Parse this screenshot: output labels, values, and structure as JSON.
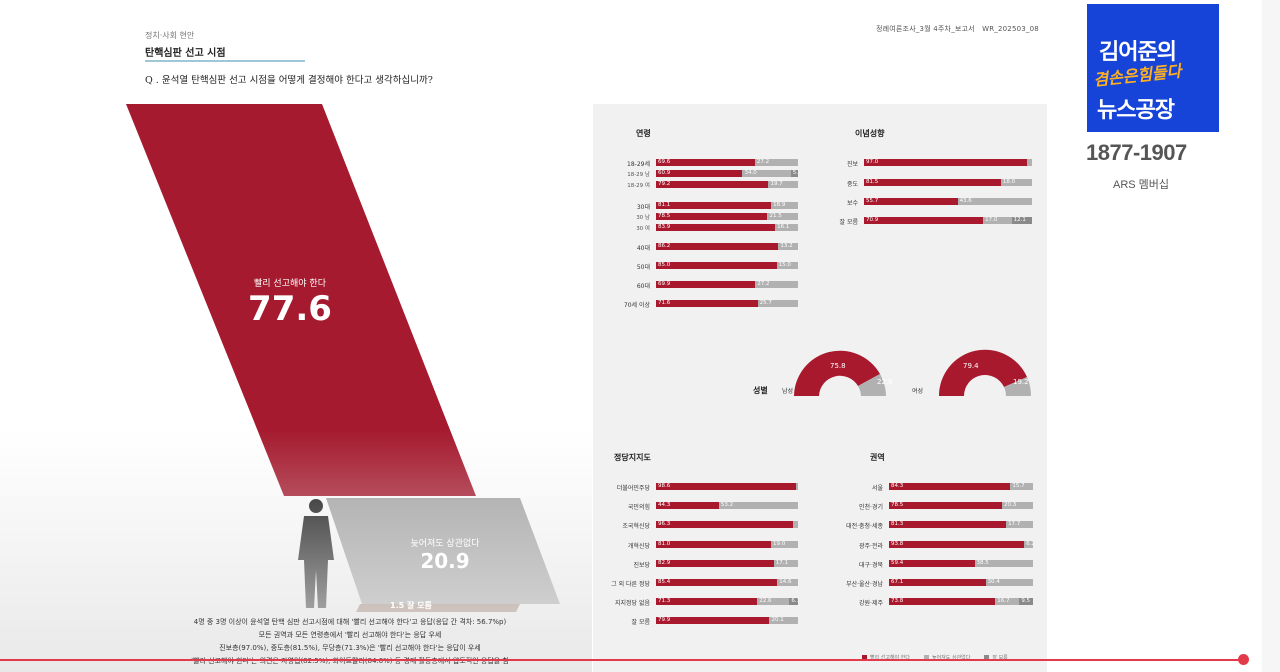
{
  "header": {
    "category": "정치·사회 현안",
    "title": "탄핵심판 선고 시점",
    "report_ref": "정례여론조사_3월 4주차_보고서",
    "report_code": "WR_202503_08",
    "question": "Q . 윤석열 탄핵심판 선고 시점을 어떻게 결정해야 한다고 생각하십니까?"
  },
  "overall": {
    "main_label": "빨리 선고해야 한다",
    "main_value": "77.6",
    "second_label": "늦어져도 상관없다",
    "second_value": "20.9",
    "third_label": "1.5 잘 모름"
  },
  "sections": {
    "age": "연령",
    "ideology": "이념성향",
    "gender": "성별",
    "party": "정당지지도",
    "region": "권역"
  },
  "colors": {
    "red": "#a8192e",
    "gray": "#b1b1b1",
    "dark": "#8a8a8a"
  },
  "age_rows": [
    {
      "label": "18-29세",
      "r": "69.6",
      "g": "27.2",
      "d": "",
      "small": false
    },
    {
      "label": "18-29 남",
      "r": "60.9",
      "g": "34.0",
      "d": "5.1",
      "small": true
    },
    {
      "label": "18-29 여",
      "r": "79.2",
      "g": "19.7",
      "d": "",
      "small": true
    },
    {
      "label": "30대",
      "r": "81.1",
      "g": "18.9",
      "d": "",
      "small": false
    },
    {
      "label": "30 남",
      "r": "78.5",
      "g": "21.5",
      "d": "",
      "small": true
    },
    {
      "label": "30 여",
      "r": "83.9",
      "g": "16.1",
      "d": "",
      "small": true
    },
    {
      "label": "40대",
      "r": "86.2",
      "g": "13.2",
      "d": "",
      "small": false
    },
    {
      "label": "50대",
      "r": "85.0",
      "g": "15.0",
      "d": "",
      "small": false
    },
    {
      "label": "60대",
      "r": "69.9",
      "g": "27.2",
      "d": "",
      "small": false
    },
    {
      "label": "70세 이상",
      "r": "71.6",
      "g": "25.7",
      "d": "",
      "small": false
    }
  ],
  "ideology_rows": [
    {
      "label": "진보",
      "r": "97.0",
      "g": "",
      "d": ""
    },
    {
      "label": "중도",
      "r": "81.5",
      "g": "18.0",
      "d": ""
    },
    {
      "label": "보수",
      "r": "55.7",
      "g": "43.6",
      "d": ""
    },
    {
      "label": "잘 모름",
      "r": "70.9",
      "g": "17.0",
      "d": "12.1"
    }
  ],
  "gender": {
    "male_label": "남성",
    "male_r": "75.8",
    "male_g": "22.6",
    "female_label": "여성",
    "female_r": "79.4",
    "female_g": "19.2"
  },
  "party_rows": [
    {
      "label": "더불어민주당",
      "r": "98.6",
      "g": "",
      "d": ""
    },
    {
      "label": "국민의힘",
      "r": "44.3",
      "g": "53.2",
      "d": ""
    },
    {
      "label": "조국혁신당",
      "r": "96.3",
      "g": "",
      "d": ""
    },
    {
      "label": "개혁신당",
      "r": "81.0",
      "g": "19.0",
      "d": ""
    },
    {
      "label": "진보당",
      "r": "82.9",
      "g": "17.1",
      "d": ""
    },
    {
      "label": "그 외 다른 정당",
      "r": "85.4",
      "g": "14.6",
      "d": ""
    },
    {
      "label": "지지정당 없음",
      "r": "71.3",
      "g": "22.6",
      "d": "6.1"
    },
    {
      "label": "잘 모름",
      "r": "79.9",
      "g": "20.1",
      "d": ""
    }
  ],
  "region_rows": [
    {
      "label": "서울",
      "r": "84.3",
      "g": "15.7",
      "d": ""
    },
    {
      "label": "인천·경기",
      "r": "78.5",
      "g": "20.3",
      "d": ""
    },
    {
      "label": "대전·충청·세종",
      "r": "81.3",
      "g": "17.7",
      "d": ""
    },
    {
      "label": "광주·전라",
      "r": "93.8",
      "g": "6.2",
      "d": ""
    },
    {
      "label": "대구·경북",
      "r": "59.4",
      "g": "38.5",
      "d": ""
    },
    {
      "label": "부산·울산·경남",
      "r": "67.1",
      "g": "30.4",
      "d": ""
    },
    {
      "label": "강원·제주",
      "r": "73.8",
      "g": "16.7",
      "d": "9.5"
    }
  ],
  "legend": [
    "빨리 선고해야 한다",
    "늦어져도 상관없다",
    "잘 모름"
  ],
  "notes": [
    "4명 중 3명 이상이 윤석열 탄핵 심판 선고시점에 대해 '빨리 선고해야 한다'고 응답(응답 간 격차: 56.7%p)",
    "모든 권역과 모든 연령층에서 '빨리 선고해야 한다'는 응답 우세",
    "진보층(97.0%), 중도층(81.5%), 무당층(71.3%)은 '빨리 선고해야 한다'는 응답이 우세",
    "'빨리 선고해야 한다'는 의견은 자영업(82.5%), 화이트칼라(84.6%) 등 경제 활동층에서 압도적인 응답을 함"
  ],
  "logo": {
    "line1": "김어준의",
    "line2": "겸손은힘들다",
    "line3": "뉴스공장",
    "phone": "1877-1907",
    "ars": "ARS 멤버십"
  }
}
